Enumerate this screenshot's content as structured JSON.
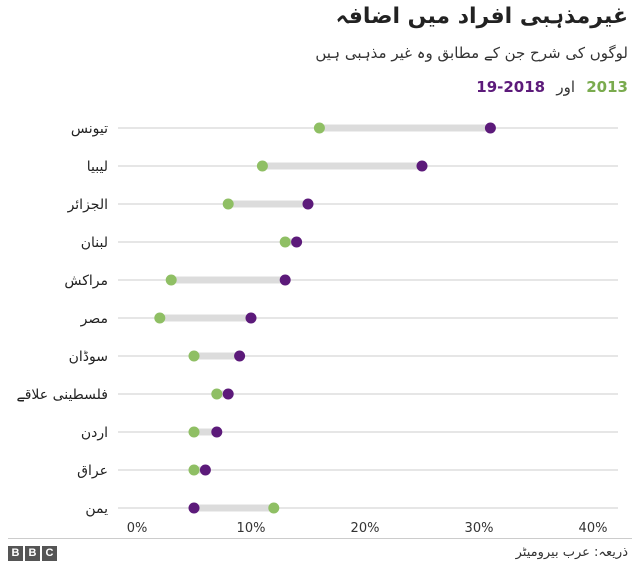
{
  "header": {
    "title": "غیرمذہبی افراد میں اضافہ",
    "subtitle": "لوگوں کی شرح جن کے مطابق وہ غیر مذہبی ہیں",
    "legend_2013": "2013",
    "legend_and": "اور",
    "legend_2018": "2018-19"
  },
  "colors": {
    "y2013": "#8fbf64",
    "y2018": "#5c1a7a",
    "connector": "#dcdcdc",
    "grid": "#cccccc"
  },
  "chart_data": {
    "type": "scatter",
    "title": "غیرمذہبی افراد میں اضافہ",
    "subtitle": "لوگوں کی شرح جن کے مطابق وہ غیر مذہبی ہیں",
    "categories": [
      "تیونس",
      "لیبیا",
      "الجزائر",
      "لبنان",
      "مراکش",
      "مصر",
      "سوڈان",
      "فلسطینی علاقے",
      "اردن",
      "عراق",
      "یمن"
    ],
    "series": [
      {
        "name": "2013",
        "values": [
          16,
          11,
          8,
          13,
          3,
          2,
          5,
          7,
          5,
          5,
          12
        ]
      },
      {
        "name": "2018-19",
        "values": [
          31,
          25,
          15,
          14,
          13,
          10,
          9,
          8,
          7,
          6,
          5
        ]
      }
    ],
    "xlim": [
      0,
      40
    ],
    "x_ticks": [
      0,
      10,
      20,
      30,
      40
    ],
    "x_tick_labels": [
      "0%",
      "10%",
      "20%",
      "30%",
      "40%"
    ],
    "grid": true
  },
  "footer": {
    "logo_letters": [
      "B",
      "B",
      "C"
    ],
    "source": "ذریعہ: عرب بیرومیٹر"
  }
}
